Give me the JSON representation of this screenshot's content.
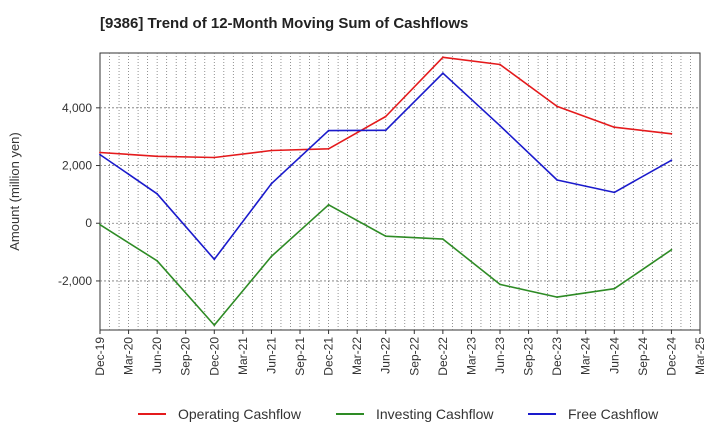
{
  "chart_data": {
    "type": "line",
    "title": "[9386]  Trend of 12-Month Moving Sum of Cashflows",
    "xlabel": "",
    "ylabel": "Amount (million yen)",
    "x": [
      "Dec-19",
      "Mar-20",
      "Jun-20",
      "Sep-20",
      "Dec-20",
      "Mar-21",
      "Jun-21",
      "Sep-21",
      "Dec-21",
      "Mar-22",
      "Jun-22",
      "Sep-22",
      "Dec-22",
      "Mar-23",
      "Jun-23",
      "Sep-23",
      "Dec-23",
      "Mar-24",
      "Jun-24",
      "Sep-24",
      "Dec-24",
      "Mar-25"
    ],
    "yticks": [
      -2000,
      0,
      2000,
      4000
    ],
    "ytick_labels": [
      "-2,000",
      "0",
      "2,000",
      "4,000"
    ],
    "ylim": [
      -3700,
      5900
    ],
    "grid": true,
    "legend_position": "bottom",
    "series": [
      {
        "name": "Operating Cashflow",
        "color": "#e41a1c",
        "points": [
          [
            "Dec-19",
            2450
          ],
          [
            "Jun-20",
            2320
          ],
          [
            "Dec-20",
            2280
          ],
          [
            "Jun-21",
            2520
          ],
          [
            "Dec-21",
            2580
          ],
          [
            "Jun-22",
            3700
          ],
          [
            "Dec-22",
            5750
          ],
          [
            "Jun-23",
            5500
          ],
          [
            "Dec-23",
            4050
          ],
          [
            "Jun-24",
            3330
          ],
          [
            "Dec-24",
            3100
          ]
        ]
      },
      {
        "name": "Investing Cashflow",
        "color": "#2e8b25",
        "points": [
          [
            "Dec-19",
            -50
          ],
          [
            "Jun-20",
            -1300
          ],
          [
            "Dec-20",
            -3530
          ],
          [
            "Jun-21",
            -1150
          ],
          [
            "Dec-21",
            640
          ],
          [
            "Jun-22",
            -450
          ],
          [
            "Dec-22",
            -550
          ],
          [
            "Jun-23",
            -2120
          ],
          [
            "Dec-23",
            -2560
          ],
          [
            "Jun-24",
            -2270
          ],
          [
            "Dec-24",
            -920
          ]
        ]
      },
      {
        "name": "Free Cashflow",
        "color": "#1a1acc",
        "points": [
          [
            "Dec-19",
            2380
          ],
          [
            "Jun-20",
            1020
          ],
          [
            "Dec-20",
            -1250
          ],
          [
            "Jun-21",
            1370
          ],
          [
            "Dec-21",
            3210
          ],
          [
            "Jun-22",
            3220
          ],
          [
            "Dec-22",
            5200
          ],
          [
            "Jun-23",
            3380
          ],
          [
            "Dec-23",
            1500
          ],
          [
            "Jun-24",
            1070
          ],
          [
            "Dec-24",
            2180
          ]
        ]
      }
    ]
  }
}
